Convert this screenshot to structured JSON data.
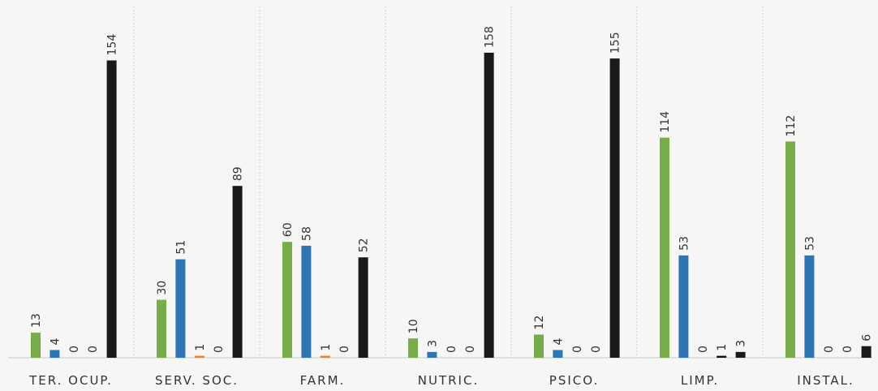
{
  "chart_data": {
    "type": "bar",
    "title": "",
    "xlabel": "",
    "ylabel": "",
    "ylim": [
      0,
      160
    ],
    "grid": false,
    "legend": "none",
    "categories": [
      "TER. OCUP.",
      "SERV. SOC.",
      "FARM.",
      "NUTRIC.",
      "PSICO.",
      "LIMP.",
      "INSTAL."
    ],
    "series": [
      {
        "color": "#77ac4a",
        "values": [
          13,
          30,
          60,
          10,
          12,
          114,
          112
        ]
      },
      {
        "color": "#2e75b6",
        "values": [
          4,
          51,
          58,
          3,
          4,
          53,
          53
        ]
      },
      {
        "color": "#ed7d31",
        "values": [
          0,
          1,
          1,
          0,
          0,
          0,
          0
        ]
      },
      {
        "color": "#111111",
        "values": [
          0,
          0,
          0,
          0,
          0,
          1,
          0
        ]
      },
      {
        "color": "#1a1a1a",
        "values": [
          154,
          89,
          52,
          158,
          155,
          3,
          6
        ]
      }
    ]
  }
}
